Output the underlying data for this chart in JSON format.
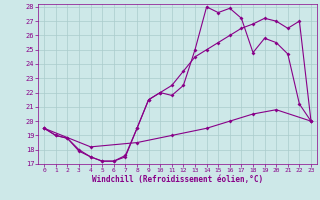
{
  "xlabel": "Windchill (Refroidissement éolien,°C)",
  "bg_color": "#cde8e8",
  "line_color": "#880088",
  "grid_color": "#aacccc",
  "xlim": [
    -0.5,
    23.5
  ],
  "ylim": [
    17,
    28.2
  ],
  "xticks": [
    0,
    1,
    2,
    3,
    4,
    5,
    6,
    7,
    8,
    9,
    10,
    11,
    12,
    13,
    14,
    15,
    16,
    17,
    18,
    19,
    20,
    21,
    22,
    23
  ],
  "yticks": [
    17,
    18,
    19,
    20,
    21,
    22,
    23,
    24,
    25,
    26,
    27,
    28
  ],
  "line1_x": [
    0,
    1,
    2,
    3,
    4,
    5,
    6,
    7,
    8,
    9,
    10,
    11,
    12,
    13,
    14,
    15,
    16,
    17,
    18,
    19,
    20,
    21,
    22,
    23
  ],
  "line1_y": [
    19.5,
    19.0,
    18.8,
    18.0,
    17.5,
    17.2,
    17.2,
    17.6,
    19.5,
    21.5,
    22.0,
    22.5,
    23.5,
    24.5,
    25.0,
    25.5,
    26.0,
    26.5,
    26.8,
    27.2,
    27.0,
    26.5,
    27.0,
    20.0
  ],
  "line2_x": [
    0,
    1,
    2,
    3,
    4,
    5,
    6,
    7,
    8,
    9,
    10,
    11,
    12,
    13,
    14,
    15,
    16,
    17,
    18,
    19,
    20,
    21,
    22,
    23
  ],
  "line2_y": [
    19.5,
    19.0,
    18.8,
    17.9,
    17.5,
    17.2,
    17.2,
    17.5,
    19.5,
    21.5,
    22.0,
    21.8,
    22.5,
    25.0,
    28.0,
    27.6,
    27.9,
    27.2,
    24.8,
    25.8,
    25.5,
    24.7,
    21.2,
    20.0
  ],
  "line3_x": [
    0,
    4,
    8,
    11,
    14,
    16,
    18,
    20,
    23
  ],
  "line3_y": [
    19.5,
    18.2,
    18.5,
    19.0,
    19.5,
    20.0,
    20.5,
    20.8,
    20.0
  ]
}
